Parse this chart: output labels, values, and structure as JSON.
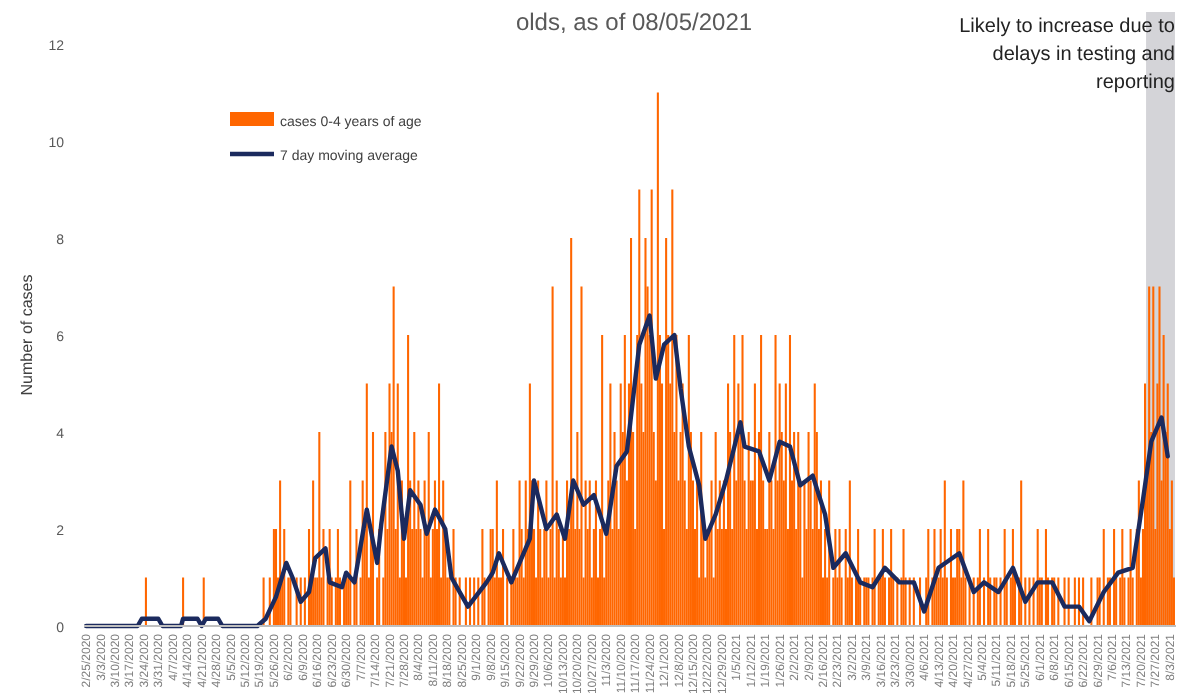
{
  "chart_data": {
    "type": "bar",
    "title": "olds, as of 08/05/2021",
    "ylabel": "Number of cases",
    "x": [
      "2020-02-25",
      "2020-02-26",
      "2020-02-27",
      "2020-02-28",
      "2020-02-29",
      "2020-03-01",
      "2020-03-02",
      "2020-03-03",
      "2020-03-04",
      "2020-03-05",
      "2020-03-06",
      "2020-03-07",
      "2020-03-08",
      "2020-03-09",
      "2020-03-10",
      "2020-03-11",
      "2020-03-12",
      "2020-03-13",
      "2020-03-14",
      "2020-03-15",
      "2020-03-16",
      "2020-03-17",
      "2020-03-18",
      "2020-03-19",
      "2020-03-20",
      "2020-03-21",
      "2020-03-22",
      "2020-03-23",
      "2020-03-24",
      "2020-03-25",
      "2020-03-26",
      "2020-03-27",
      "2020-03-28",
      "2020-03-29",
      "2020-03-30",
      "2020-03-31",
      "2020-04-01",
      "2020-04-02",
      "2020-04-03",
      "2020-04-04",
      "2020-04-05",
      "2020-04-06",
      "2020-04-07",
      "2020-04-08",
      "2020-04-09",
      "2020-04-10",
      "2020-04-11",
      "2020-04-12",
      "2020-04-13",
      "2020-04-14",
      "2020-04-15",
      "2020-04-16",
      "2020-04-17",
      "2020-04-18",
      "2020-04-19",
      "2020-04-20",
      "2020-04-21",
      "2020-04-22",
      "2020-04-23",
      "2020-04-24",
      "2020-04-25",
      "2020-04-26",
      "2020-04-27",
      "2020-04-28",
      "2020-04-29",
      "2020-04-30",
      "2020-05-01",
      "2020-05-02",
      "2020-05-03",
      "2020-05-04",
      "2020-05-05",
      "2020-05-06",
      "2020-05-07",
      "2020-05-08",
      "2020-05-09",
      "2020-05-10",
      "2020-05-11",
      "2020-05-12",
      "2020-05-13",
      "2020-05-14",
      "2020-05-15",
      "2020-05-16",
      "2020-05-17",
      "2020-05-18",
      "2020-05-19",
      "2020-05-20",
      "2020-05-21",
      "2020-05-22",
      "2020-05-23",
      "2020-05-24",
      "2020-05-25",
      "2020-05-26",
      "2020-05-27",
      "2020-05-28",
      "2020-05-29",
      "2020-05-30",
      "2020-05-31",
      "2020-06-01",
      "2020-06-02",
      "2020-06-03",
      "2020-06-04",
      "2020-06-05",
      "2020-06-06",
      "2020-06-07",
      "2020-06-08",
      "2020-06-09",
      "2020-06-10",
      "2020-06-11",
      "2020-06-12",
      "2020-06-13",
      "2020-06-14",
      "2020-06-15",
      "2020-06-16",
      "2020-06-17",
      "2020-06-18",
      "2020-06-19",
      "2020-06-20",
      "2020-06-21",
      "2020-06-22",
      "2020-06-23",
      "2020-06-24",
      "2020-06-25",
      "2020-06-26",
      "2020-06-27",
      "2020-06-28",
      "2020-06-29",
      "2020-06-30",
      "2020-07-01",
      "2020-07-02",
      "2020-07-03",
      "2020-07-04",
      "2020-07-05",
      "2020-07-06",
      "2020-07-07",
      "2020-07-08",
      "2020-07-09",
      "2020-07-10",
      "2020-07-11",
      "2020-07-12",
      "2020-07-13",
      "2020-07-14",
      "2020-07-15",
      "2020-07-16",
      "2020-07-17",
      "2020-07-18",
      "2020-07-19",
      "2020-07-20",
      "2020-07-21",
      "2020-07-22",
      "2020-07-23",
      "2020-07-24",
      "2020-07-25",
      "2020-07-26",
      "2020-07-27",
      "2020-07-28",
      "2020-07-29",
      "2020-07-30",
      "2020-07-31",
      "2020-08-01",
      "2020-08-02",
      "2020-08-03",
      "2020-08-04",
      "2020-08-05",
      "2020-08-06",
      "2020-08-07",
      "2020-08-08",
      "2020-08-09",
      "2020-08-10",
      "2020-08-11",
      "2020-08-12",
      "2020-08-13",
      "2020-08-14",
      "2020-08-15",
      "2020-08-16",
      "2020-08-17",
      "2020-08-18",
      "2020-08-19",
      "2020-08-20",
      "2020-08-21",
      "2020-08-22",
      "2020-08-23",
      "2020-08-24",
      "2020-08-25",
      "2020-08-26",
      "2020-08-27",
      "2020-08-28",
      "2020-08-29",
      "2020-08-30",
      "2020-08-31",
      "2020-09-01",
      "2020-09-02",
      "2020-09-03",
      "2020-09-04",
      "2020-09-05",
      "2020-09-06",
      "2020-09-07",
      "2020-09-08",
      "2020-09-09",
      "2020-09-10",
      "2020-09-11",
      "2020-09-12",
      "2020-09-13",
      "2020-09-14",
      "2020-09-15",
      "2020-09-16",
      "2020-09-17",
      "2020-09-18",
      "2020-09-19",
      "2020-09-20",
      "2020-09-21",
      "2020-09-22",
      "2020-09-23",
      "2020-09-24",
      "2020-09-25",
      "2020-09-26",
      "2020-09-27",
      "2020-09-28",
      "2020-09-29",
      "2020-09-30",
      "2020-10-01",
      "2020-10-02",
      "2020-10-03",
      "2020-10-04",
      "2020-10-05",
      "2020-10-06",
      "2020-10-07",
      "2020-10-08",
      "2020-10-09",
      "2020-10-10",
      "2020-10-11",
      "2020-10-12",
      "2020-10-13",
      "2020-10-14",
      "2020-10-15",
      "2020-10-16",
      "2020-10-17",
      "2020-10-18",
      "2020-10-19",
      "2020-10-20",
      "2020-10-21",
      "2020-10-22",
      "2020-10-23",
      "2020-10-24",
      "2020-10-25",
      "2020-10-26",
      "2020-10-27",
      "2020-10-28",
      "2020-10-29",
      "2020-10-30",
      "2020-10-31",
      "2020-11-01",
      "2020-11-02",
      "2020-11-03",
      "2020-11-04",
      "2020-11-05",
      "2020-11-06",
      "2020-11-07",
      "2020-11-08",
      "2020-11-09",
      "2020-11-10",
      "2020-11-11",
      "2020-11-12",
      "2020-11-13",
      "2020-11-14",
      "2020-11-15",
      "2020-11-16",
      "2020-11-17",
      "2020-11-18",
      "2020-11-19",
      "2020-11-20",
      "2020-11-21",
      "2020-11-22",
      "2020-11-23",
      "2020-11-24",
      "2020-11-25",
      "2020-11-26",
      "2020-11-27",
      "2020-11-28",
      "2020-11-29",
      "2020-11-30",
      "2020-12-01",
      "2020-12-02",
      "2020-12-03",
      "2020-12-04",
      "2020-12-05",
      "2020-12-06",
      "2020-12-07",
      "2020-12-08",
      "2020-12-09",
      "2020-12-10",
      "2020-12-11",
      "2020-12-12",
      "2020-12-13",
      "2020-12-14",
      "2020-12-15",
      "2020-12-16",
      "2020-12-17",
      "2020-12-18",
      "2020-12-19",
      "2020-12-20",
      "2020-12-21",
      "2020-12-22",
      "2020-12-23",
      "2020-12-24",
      "2020-12-25",
      "2020-12-26",
      "2020-12-27",
      "2020-12-28",
      "2020-12-29",
      "2020-12-30",
      "2020-12-31",
      "2021-01-01",
      "2021-01-02",
      "2021-01-03",
      "2021-01-04",
      "2021-01-05",
      "2021-01-06",
      "2021-01-07",
      "2021-01-08",
      "2021-01-09",
      "2021-01-10",
      "2021-01-11",
      "2021-01-12",
      "2021-01-13",
      "2021-01-14",
      "2021-01-15",
      "2021-01-16",
      "2021-01-17",
      "2021-01-18",
      "2021-01-19",
      "2021-01-20",
      "2021-01-21",
      "2021-01-22",
      "2021-01-23",
      "2021-01-24",
      "2021-01-25",
      "2021-01-26",
      "2021-01-27",
      "2021-01-28",
      "2021-01-29",
      "2021-01-30",
      "2021-01-31",
      "2021-02-01",
      "2021-02-02",
      "2021-02-03",
      "2021-02-04",
      "2021-02-05",
      "2021-02-06",
      "2021-02-07",
      "2021-02-08",
      "2021-02-09",
      "2021-02-10",
      "2021-02-11",
      "2021-02-12",
      "2021-02-13",
      "2021-02-14",
      "2021-02-15",
      "2021-02-16",
      "2021-02-17",
      "2021-02-18",
      "2021-02-19",
      "2021-02-20",
      "2021-02-21",
      "2021-02-22",
      "2021-02-23",
      "2021-02-24",
      "2021-02-25",
      "2021-02-26",
      "2021-02-27",
      "2021-02-28",
      "2021-03-01",
      "2021-03-02",
      "2021-03-03",
      "2021-03-04",
      "2021-03-05",
      "2021-03-06",
      "2021-03-07",
      "2021-03-08",
      "2021-03-09",
      "2021-03-10",
      "2021-03-11",
      "2021-03-12",
      "2021-03-13",
      "2021-03-14",
      "2021-03-15",
      "2021-03-16",
      "2021-03-17",
      "2021-03-18",
      "2021-03-19",
      "2021-03-20",
      "2021-03-21",
      "2021-03-22",
      "2021-03-23",
      "2021-03-24",
      "2021-03-25",
      "2021-03-26",
      "2021-03-27",
      "2021-03-28",
      "2021-03-29",
      "2021-03-30",
      "2021-03-31",
      "2021-04-01",
      "2021-04-02",
      "2021-04-03",
      "2021-04-04",
      "2021-04-05",
      "2021-04-06",
      "2021-04-07",
      "2021-04-08",
      "2021-04-09",
      "2021-04-10",
      "2021-04-11",
      "2021-04-12",
      "2021-04-13",
      "2021-04-14",
      "2021-04-15",
      "2021-04-16",
      "2021-04-17",
      "2021-04-18",
      "2021-04-19",
      "2021-04-20",
      "2021-04-21",
      "2021-04-22",
      "2021-04-23",
      "2021-04-24",
      "2021-04-25",
      "2021-04-26",
      "2021-04-27",
      "2021-04-28",
      "2021-04-29",
      "2021-04-30",
      "2021-05-01",
      "2021-05-02",
      "2021-05-03",
      "2021-05-04",
      "2021-05-05",
      "2021-05-06",
      "2021-05-07",
      "2021-05-08",
      "2021-05-09",
      "2021-05-10",
      "2021-05-11",
      "2021-05-12",
      "2021-05-13",
      "2021-05-14",
      "2021-05-15",
      "2021-05-16",
      "2021-05-17",
      "2021-05-18",
      "2021-05-19",
      "2021-05-20",
      "2021-05-21",
      "2021-05-22",
      "2021-05-23",
      "2021-05-24",
      "2021-05-25",
      "2021-05-26",
      "2021-05-27",
      "2021-05-28",
      "2021-05-29",
      "2021-05-30",
      "2021-05-31",
      "2021-06-01",
      "2021-06-02",
      "2021-06-03",
      "2021-06-04",
      "2021-06-05",
      "2021-06-06",
      "2021-06-07",
      "2021-06-08",
      "2021-06-09",
      "2021-06-10",
      "2021-06-11",
      "2021-06-12",
      "2021-06-13",
      "2021-06-14",
      "2021-06-15",
      "2021-06-16",
      "2021-06-17",
      "2021-06-18",
      "2021-06-19",
      "2021-06-20",
      "2021-06-21",
      "2021-06-22",
      "2021-06-23",
      "2021-06-24",
      "2021-06-25",
      "2021-06-26",
      "2021-06-27",
      "2021-06-28",
      "2021-06-29",
      "2021-06-30",
      "2021-07-01",
      "2021-07-02",
      "2021-07-03",
      "2021-07-04",
      "2021-07-05",
      "2021-07-06",
      "2021-07-07",
      "2021-07-08",
      "2021-07-09",
      "2021-07-10",
      "2021-07-11",
      "2021-07-12",
      "2021-07-13",
      "2021-07-14",
      "2021-07-15",
      "2021-07-16",
      "2021-07-17",
      "2021-07-18",
      "2021-07-19",
      "2021-07-20",
      "2021-07-21",
      "2021-07-22",
      "2021-07-23",
      "2021-07-24",
      "2021-07-25",
      "2021-07-26",
      "2021-07-27",
      "2021-07-28",
      "2021-07-29",
      "2021-07-30",
      "2021-07-31",
      "2021-08-01",
      "2021-08-02",
      "2021-08-03",
      "2021-08-04",
      "2021-08-05"
    ],
    "series": [
      {
        "name": "cases 0-4 years of age",
        "color": "#ff6600",
        "values": [
          0,
          0,
          0,
          0,
          0,
          0,
          0,
          0,
          0,
          0,
          0,
          0,
          0,
          0,
          0,
          0,
          0,
          0,
          0,
          0,
          0,
          0,
          0,
          0,
          0,
          0,
          0,
          0,
          0,
          1,
          0,
          0,
          0,
          0,
          0,
          0,
          0,
          0,
          0,
          0,
          0,
          0,
          0,
          0,
          0,
          0,
          0,
          1,
          0,
          0,
          0,
          0,
          0,
          0,
          0,
          0,
          0,
          1,
          0,
          0,
          0,
          0,
          0,
          0,
          0,
          0,
          0,
          0,
          0,
          0,
          0,
          0,
          0,
          0,
          0,
          0,
          0,
          0,
          0,
          0,
          0,
          0,
          0,
          0,
          0,
          0,
          1,
          0,
          0,
          1,
          0,
          2,
          2,
          1,
          3,
          1,
          2,
          0,
          1,
          1,
          0,
          0,
          1,
          0,
          1,
          0,
          1,
          0,
          2,
          1,
          3,
          1,
          1,
          4,
          1,
          2,
          0,
          1,
          2,
          1,
          0,
          1,
          2,
          1,
          0,
          1,
          1,
          1,
          3,
          0,
          1,
          2,
          0,
          1,
          3,
          2,
          5,
          1,
          2,
          4,
          0,
          1,
          2,
          0,
          1,
          4,
          2,
          5,
          4,
          7,
          2,
          5,
          1,
          3,
          2,
          1,
          6,
          3,
          2,
          4,
          2,
          3,
          2,
          1,
          3,
          2,
          4,
          1,
          2,
          3,
          2,
          5,
          1,
          3,
          2,
          1,
          1,
          0,
          2,
          1,
          0,
          1,
          0,
          0,
          1,
          0,
          1,
          0,
          1,
          0,
          1,
          0,
          2,
          1,
          0,
          1,
          2,
          2,
          1,
          3,
          1,
          1,
          2,
          0,
          1,
          0,
          1,
          2,
          1,
          1,
          3,
          2,
          1,
          3,
          2,
          5,
          3,
          2,
          1,
          3,
          2,
          1,
          2,
          3,
          1,
          2,
          7,
          1,
          3,
          2,
          1,
          2,
          1,
          3,
          2,
          8,
          3,
          2,
          4,
          2,
          7,
          1,
          3,
          2,
          3,
          1,
          2,
          3,
          1,
          2,
          6,
          1,
          2,
          3,
          5,
          2,
          4,
          3,
          2,
          5,
          4,
          6,
          3,
          5,
          8,
          4,
          2,
          6,
          9,
          5,
          4,
          8,
          7,
          6,
          9,
          4,
          3,
          11,
          6,
          5,
          2,
          8,
          6,
          5,
          9,
          4,
          6,
          3,
          4,
          5,
          3,
          2,
          6,
          4,
          3,
          2,
          3,
          1,
          4,
          2,
          1,
          2,
          2,
          3,
          1,
          4,
          2,
          3,
          2,
          3,
          2,
          5,
          4,
          2,
          6,
          3,
          5,
          4,
          6,
          3,
          2,
          4,
          3,
          3,
          5,
          2,
          4,
          6,
          3,
          2,
          2,
          4,
          3,
          2,
          6,
          3,
          5,
          4,
          3,
          5,
          2,
          6,
          3,
          4,
          2,
          4,
          3,
          1,
          3,
          2,
          4,
          3,
          2,
          5,
          4,
          2,
          3,
          1,
          2,
          1,
          3,
          0,
          1,
          2,
          1,
          2,
          1,
          0,
          2,
          1,
          3,
          1,
          0,
          1,
          2,
          1,
          0,
          1,
          1,
          1,
          0,
          1,
          2,
          0,
          1,
          1,
          2,
          1,
          0,
          1,
          2,
          1,
          0,
          1,
          0,
          1,
          2,
          1,
          0,
          1,
          0,
          1,
          0,
          0,
          1,
          0,
          0,
          1,
          2,
          0,
          1,
          2,
          1,
          1,
          2,
          1,
          3,
          1,
          0,
          2,
          1,
          1,
          2,
          2,
          1,
          3,
          1,
          0,
          1,
          0,
          1,
          0,
          1,
          2,
          0,
          1,
          0,
          2,
          1,
          0,
          1,
          1,
          0,
          1,
          0,
          2,
          1,
          0,
          1,
          2,
          1,
          0,
          1,
          3,
          0,
          1,
          0,
          1,
          0,
          1,
          0,
          2,
          1,
          1,
          0,
          2,
          1,
          0,
          1,
          1,
          0,
          1,
          0,
          0,
          1,
          0,
          1,
          0,
          0,
          1,
          0,
          1,
          0,
          1,
          0,
          0,
          0,
          1,
          0,
          0,
          1,
          1,
          0,
          2,
          0,
          1,
          1,
          0,
          2,
          1,
          0,
          1,
          2,
          1,
          0,
          1,
          2,
          1,
          0,
          2,
          3,
          1,
          2,
          5,
          3,
          7,
          4,
          7,
          2,
          5,
          7,
          3,
          6,
          4,
          5,
          2,
          3,
          1
        ]
      },
      {
        "name": "7 day moving average",
        "type": "line",
        "color": "#1b2a5e",
        "x": [
          "2020-02-25",
          "2020-03-21",
          "2020-03-23",
          "2020-03-31",
          "2020-04-02",
          "2020-04-11",
          "2020-04-12",
          "2020-04-19",
          "2020-04-21",
          "2020-04-23",
          "2020-04-29",
          "2020-05-01",
          "2020-05-18",
          "2020-05-22",
          "2020-05-27",
          "2020-06-01",
          "2020-06-04",
          "2020-06-08",
          "2020-06-12",
          "2020-06-15",
          "2020-06-20",
          "2020-06-22",
          "2020-06-28",
          "2020-06-30",
          "2020-07-04",
          "2020-07-10",
          "2020-07-15",
          "2020-07-17",
          "2020-07-22",
          "2020-07-25",
          "2020-07-28",
          "2020-07-31",
          "2020-08-05",
          "2020-08-08",
          "2020-08-12",
          "2020-08-17",
          "2020-08-20",
          "2020-08-24",
          "2020-08-28",
          "2020-09-06",
          "2020-09-09",
          "2020-09-12",
          "2020-09-18",
          "2020-09-22",
          "2020-09-27",
          "2020-09-29",
          "2020-10-05",
          "2020-10-10",
          "2020-10-14",
          "2020-10-18",
          "2020-10-23",
          "2020-10-28",
          "2020-10-31",
          "2020-11-03",
          "2020-11-08",
          "2020-11-13",
          "2020-11-19",
          "2020-11-24",
          "2020-11-27",
          "2020-12-01",
          "2020-12-06",
          "2020-12-09",
          "2020-12-13",
          "2020-12-18",
          "2020-12-21",
          "2020-12-26",
          "2020-12-31",
          "2021-01-07",
          "2021-01-09",
          "2021-01-16",
          "2021-01-21",
          "2021-01-26",
          "2021-01-31",
          "2021-02-05",
          "2021-02-11",
          "2021-02-17",
          "2021-02-21",
          "2021-02-27",
          "2021-03-06",
          "2021-03-12",
          "2021-03-18",
          "2021-03-25",
          "2021-04-01",
          "2021-04-06",
          "2021-04-13",
          "2021-04-23",
          "2021-04-30",
          "2021-05-05",
          "2021-05-12",
          "2021-05-19",
          "2021-05-25",
          "2021-05-31",
          "2021-06-07",
          "2021-06-13",
          "2021-06-20",
          "2021-06-25",
          "2021-07-02",
          "2021-07-09",
          "2021-07-16",
          "2021-07-21",
          "2021-07-25",
          "2021-07-30",
          "2021-08-02"
        ],
        "values": [
          0,
          0,
          0.15,
          0.15,
          0,
          0,
          0.15,
          0.15,
          0,
          0.15,
          0.15,
          0,
          0,
          0.15,
          0.6,
          1.3,
          1.0,
          0.5,
          0.7,
          1.4,
          1.6,
          0.9,
          0.8,
          1.1,
          0.9,
          2.4,
          1.3,
          2.1,
          3.7,
          3.2,
          1.8,
          2.8,
          2.5,
          1.9,
          2.4,
          2.0,
          1.0,
          0.7,
          0.4,
          0.9,
          1.1,
          1.5,
          0.9,
          1.3,
          1.8,
          3.0,
          2.0,
          2.3,
          1.8,
          3.0,
          2.5,
          2.7,
          2.3,
          1.9,
          3.3,
          3.6,
          5.8,
          6.4,
          5.1,
          5.8,
          6.0,
          4.9,
          3.7,
          2.9,
          1.8,
          2.3,
          3.0,
          4.2,
          3.7,
          3.6,
          3.0,
          3.8,
          3.7,
          2.9,
          3.1,
          2.3,
          1.2,
          1.5,
          0.9,
          0.8,
          1.2,
          0.9,
          0.9,
          0.3,
          1.2,
          1.5,
          0.7,
          0.9,
          0.7,
          1.2,
          0.5,
          0.9,
          0.9,
          0.4,
          0.4,
          0.1,
          0.7,
          1.1,
          1.2,
          2.6,
          3.8,
          4.3,
          3.5
        ]
      }
    ],
    "xlim": [
      "2020-02-24",
      "2021-08-06"
    ],
    "xticks": [
      {
        "value": "2020-02-25",
        "label": "2/25/2020"
      },
      {
        "value": "2020-03-03",
        "label": "3/3/2020"
      },
      {
        "value": "2020-03-10",
        "label": "3/10/2020"
      },
      {
        "value": "2020-03-17",
        "label": "3/17/2020"
      },
      {
        "value": "2020-03-24",
        "label": "3/24/2020"
      },
      {
        "value": "2020-03-31",
        "label": "3/31/2020"
      },
      {
        "value": "2020-04-07",
        "label": "4/7/2020"
      },
      {
        "value": "2020-04-14",
        "label": "4/14/2020"
      },
      {
        "value": "2020-04-21",
        "label": "4/21/2020"
      },
      {
        "value": "2020-04-28",
        "label": "4/28/2020"
      },
      {
        "value": "2020-05-05",
        "label": "5/5/2020"
      },
      {
        "value": "2020-05-12",
        "label": "5/12/2020"
      },
      {
        "value": "2020-05-19",
        "label": "5/19/2020"
      },
      {
        "value": "2020-05-26",
        "label": "5/26/2020"
      },
      {
        "value": "2020-06-02",
        "label": "6/2/2020"
      },
      {
        "value": "2020-06-09",
        "label": "6/9/2020"
      },
      {
        "value": "2020-06-16",
        "label": "6/16/2020"
      },
      {
        "value": "2020-06-23",
        "label": "6/23/2020"
      },
      {
        "value": "2020-06-30",
        "label": "6/30/2020"
      },
      {
        "value": "2020-07-07",
        "label": "7/7/2020"
      },
      {
        "value": "2020-07-14",
        "label": "7/14/2020"
      },
      {
        "value": "2020-07-21",
        "label": "7/21/2020"
      },
      {
        "value": "2020-07-28",
        "label": "7/28/2020"
      },
      {
        "value": "2020-08-04",
        "label": "8/4/2020"
      },
      {
        "value": "2020-08-11",
        "label": "8/11/2020"
      },
      {
        "value": "2020-08-18",
        "label": "8/18/2020"
      },
      {
        "value": "2020-08-25",
        "label": "8/25/2020"
      },
      {
        "value": "2020-09-01",
        "label": "9/1/2020"
      },
      {
        "value": "2020-09-08",
        "label": "9/8/2020"
      },
      {
        "value": "2020-09-15",
        "label": "9/15/2020"
      },
      {
        "value": "2020-09-22",
        "label": "9/22/2020"
      },
      {
        "value": "2020-09-29",
        "label": "9/29/2020"
      },
      {
        "value": "2020-10-06",
        "label": "10/6/2020"
      },
      {
        "value": "2020-10-13",
        "label": "10/13/2020"
      },
      {
        "value": "2020-10-20",
        "label": "10/20/2020"
      },
      {
        "value": "2020-10-27",
        "label": "10/27/2020"
      },
      {
        "value": "2020-11-03",
        "label": "11/3/2020"
      },
      {
        "value": "2020-11-10",
        "label": "11/10/2020"
      },
      {
        "value": "2020-11-17",
        "label": "11/17/2020"
      },
      {
        "value": "2020-11-24",
        "label": "11/24/2020"
      },
      {
        "value": "2020-12-01",
        "label": "12/1/2020"
      },
      {
        "value": "2020-12-08",
        "label": "12/8/2020"
      },
      {
        "value": "2020-12-15",
        "label": "12/15/2020"
      },
      {
        "value": "2020-12-22",
        "label": "12/22/2020"
      },
      {
        "value": "2020-12-29",
        "label": "12/29/2020"
      },
      {
        "value": "2021-01-05",
        "label": "1/5/2021"
      },
      {
        "value": "2021-01-12",
        "label": "1/12/2021"
      },
      {
        "value": "2021-01-19",
        "label": "1/19/2021"
      },
      {
        "value": "2021-01-26",
        "label": "1/26/2021"
      },
      {
        "value": "2021-02-02",
        "label": "2/2/2021"
      },
      {
        "value": "2021-02-09",
        "label": "2/9/2021"
      },
      {
        "value": "2021-02-16",
        "label": "2/16/2021"
      },
      {
        "value": "2021-02-23",
        "label": "2/23/2021"
      },
      {
        "value": "2021-03-02",
        "label": "3/2/2021"
      },
      {
        "value": "2021-03-09",
        "label": "3/9/2021"
      },
      {
        "value": "2021-03-16",
        "label": "3/16/2021"
      },
      {
        "value": "2021-03-23",
        "label": "3/23/2021"
      },
      {
        "value": "2021-03-30",
        "label": "3/30/2021"
      },
      {
        "value": "2021-04-06",
        "label": "4/6/2021"
      },
      {
        "value": "2021-04-13",
        "label": "4/13/2021"
      },
      {
        "value": "2021-04-20",
        "label": "4/20/2021"
      },
      {
        "value": "2021-04-27",
        "label": "4/27/2021"
      },
      {
        "value": "2021-05-04",
        "label": "5/4/2021"
      },
      {
        "value": "2021-05-11",
        "label": "5/11/2021"
      },
      {
        "value": "2021-05-18",
        "label": "5/18/2021"
      },
      {
        "value": "2021-05-25",
        "label": "5/25/2021"
      },
      {
        "value": "2021-06-01",
        "label": "6/1/2021"
      },
      {
        "value": "2021-06-08",
        "label": "6/8/2021"
      },
      {
        "value": "2021-06-15",
        "label": "6/15/2021"
      },
      {
        "value": "2021-06-22",
        "label": "6/22/2021"
      },
      {
        "value": "2021-06-29",
        "label": "6/29/2021"
      },
      {
        "value": "2021-07-06",
        "label": "7/6/2021"
      },
      {
        "value": "2021-07-13",
        "label": "7/13/2021"
      },
      {
        "value": "2021-07-20",
        "label": "7/20/2021"
      },
      {
        "value": "2021-07-27",
        "label": "7/27/2021"
      },
      {
        "value": "2021-08-03",
        "label": "8/3/2021"
      }
    ],
    "ylim": [
      0,
      12
    ],
    "yticks": [
      0,
      2,
      4,
      6,
      8,
      10,
      12
    ],
    "bands": [
      {
        "axis": "x",
        "from": "2021-07-23",
        "to": "2021-08-05",
        "label": "Likely to increase due to delays in testing and reporting",
        "color": "#d4d4d8"
      }
    ],
    "legend": "top left",
    "grid": false
  }
}
